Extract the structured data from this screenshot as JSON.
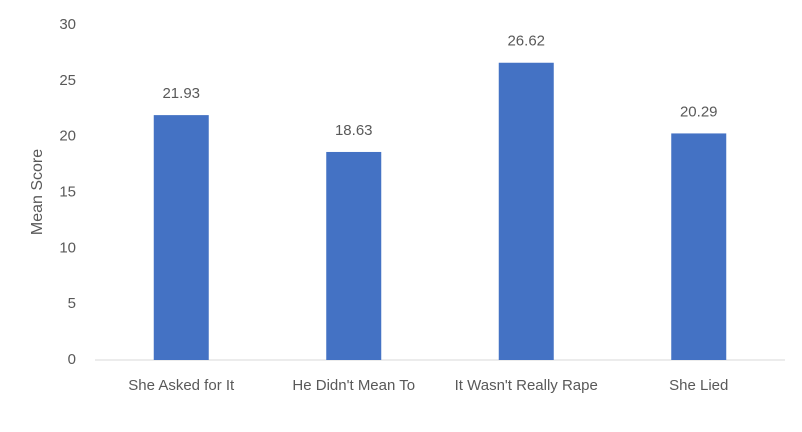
{
  "chart_data": {
    "type": "bar",
    "y_label": "Mean Score",
    "categories": [
      "She Asked for It",
      "He Didn't Mean To",
      "It Wasn't Really Rape",
      "She Lied"
    ],
    "values": [
      21.93,
      18.63,
      26.62,
      20.29
    ],
    "color": "#4472c4",
    "ylim": [
      0,
      30
    ],
    "yticks": [
      0,
      5,
      10,
      15,
      20,
      25,
      30
    ],
    "grid": false
  }
}
